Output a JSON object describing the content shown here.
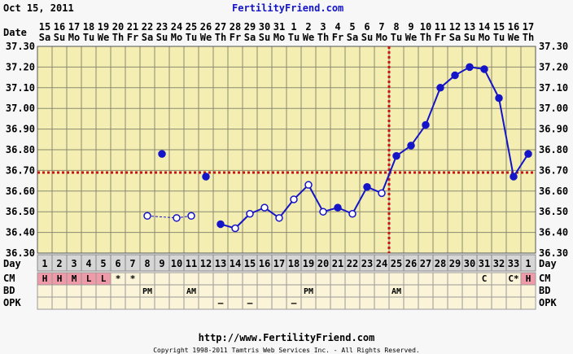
{
  "header": {
    "date": "Oct 15, 2011",
    "site": "FertilityFriend.com"
  },
  "footer": {
    "url": "http://www.FertilityFriend.com",
    "copyright": "Copyright 1998-2011 Tamtris Web Services Inc. - All Rights Reserved."
  },
  "row_labels": {
    "date": "Date",
    "day": "Day",
    "cm": "CM",
    "bd": "BD",
    "opk": "OPK"
  },
  "chart_data": {
    "type": "line",
    "title": "",
    "ylim": [
      36.3,
      37.3
    ],
    "yticks": [
      "36.30",
      "36.40",
      "36.50",
      "36.60",
      "36.70",
      "36.80",
      "36.90",
      "37.00",
      "37.10",
      "37.20",
      "37.30"
    ],
    "dates": [
      "15",
      "16",
      "17",
      "18",
      "19",
      "20",
      "21",
      "22",
      "23",
      "24",
      "25",
      "26",
      "27",
      "28",
      "29",
      "30",
      "31",
      "1",
      "2",
      "3",
      "4",
      "5",
      "6",
      "7",
      "8",
      "9",
      "10",
      "11",
      "12",
      "13",
      "14",
      "15",
      "16",
      "17"
    ],
    "weekdays": [
      "Sa",
      "Su",
      "Mo",
      "Tu",
      "We",
      "Th",
      "Fr",
      "Sa",
      "Su",
      "Mo",
      "Tu",
      "We",
      "Th",
      "Fr",
      "Sa",
      "Su",
      "Mo",
      "Tu",
      "We",
      "Th",
      "Fr",
      "Sa",
      "Su",
      "Mo",
      "Tu",
      "We",
      "Th",
      "Fr",
      "Sa",
      "Su",
      "Mo",
      "Tu",
      "We",
      "Th"
    ],
    "cycle_days": [
      "1",
      "2",
      "3",
      "4",
      "5",
      "6",
      "7",
      "8",
      "9",
      "10",
      "11",
      "12",
      "13",
      "14",
      "15",
      "16",
      "17",
      "18",
      "19",
      "20",
      "21",
      "22",
      "23",
      "24",
      "25",
      "26",
      "27",
      "28",
      "29",
      "30",
      "31",
      "32",
      "33",
      "1"
    ],
    "temps": [
      null,
      null,
      null,
      null,
      null,
      null,
      null,
      36.48,
      36.78,
      36.47,
      36.48,
      36.67,
      36.44,
      36.42,
      36.49,
      36.52,
      36.47,
      36.56,
      36.63,
      36.5,
      36.52,
      36.49,
      36.62,
      36.59,
      36.77,
      36.82,
      36.92,
      37.1,
      37.16,
      37.2,
      37.19,
      37.05,
      36.67,
      36.78
    ],
    "temp_style": [
      null,
      null,
      null,
      null,
      null,
      null,
      null,
      "open",
      "filled",
      "open",
      "open",
      "filled",
      "filled",
      "open",
      "open",
      "open",
      "open",
      "open",
      "open",
      "open",
      "filled",
      "open",
      "filled",
      "open",
      "filled",
      "filled",
      "filled",
      "filled",
      "filled",
      "filled",
      "filled",
      "filled",
      "filled",
      "filled"
    ],
    "coverline": 36.69,
    "ovulation_day": 24,
    "cm": [
      "H",
      "H",
      "M",
      "L",
      "L",
      "*",
      "*",
      "",
      "",
      "",
      "",
      "",
      "",
      "",
      "",
      "",
      "",
      "",
      "",
      "",
      "",
      "",
      "",
      "",
      "",
      "",
      "",
      "",
      "",
      "",
      "C",
      "",
      "C*",
      "H"
    ],
    "cm_highlight": [
      true,
      true,
      true,
      true,
      true,
      false,
      false,
      false,
      false,
      false,
      false,
      false,
      false,
      false,
      false,
      false,
      false,
      false,
      false,
      false,
      false,
      false,
      false,
      false,
      false,
      false,
      false,
      false,
      false,
      false,
      false,
      false,
      false,
      true
    ],
    "bd": [
      "",
      "",
      "",
      "",
      "",
      "",
      "",
      "PM",
      "",
      "",
      "AM",
      "",
      "",
      "",
      "",
      "",
      "",
      "",
      "PM",
      "",
      "",
      "",
      "",
      "",
      "AM",
      "",
      "",
      "",
      "",
      "",
      "",
      "",
      "",
      ""
    ],
    "opk": [
      "",
      "",
      "",
      "",
      "",
      "",
      "",
      "",
      "",
      "",
      "",
      "",
      "–",
      "",
      "–",
      "",
      "",
      "–",
      "",
      "",
      "",
      "",
      "",
      "",
      "",
      "",
      "",
      "",
      "",
      "",
      "",
      "",
      "",
      ""
    ],
    "colors": {
      "plot_bg": "#f5eeb2",
      "grid": "#8a8a70",
      "line": "#1414c8",
      "coverline": "#c81414",
      "cm_highlight": "#ee9aa8",
      "row_bg": "#fbf4d8",
      "day_bg": "#d6d6d6"
    }
  }
}
